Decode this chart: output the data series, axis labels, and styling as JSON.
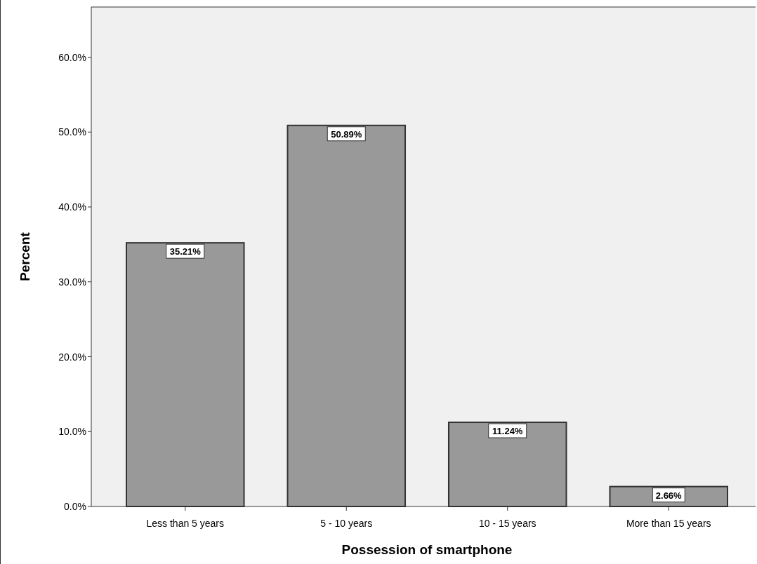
{
  "chart_data": {
    "type": "bar",
    "xlabel": "Possession of smartphone",
    "ylabel": "Percent",
    "categories": [
      "Less than 5 years",
      "5 - 10 years",
      "10 - 15 years",
      "More than 15 years"
    ],
    "values": [
      35.21,
      50.89,
      11.24,
      2.66
    ],
    "value_labels": [
      "35.21%",
      "50.89%",
      "11.24%",
      "2.66%"
    ],
    "color": "#999999",
    "ylim": [
      0,
      66.7
    ],
    "yticks": [
      {
        "value": 0,
        "label": "0.0%"
      },
      {
        "value": 10,
        "label": "10.0%"
      },
      {
        "value": 20,
        "label": "20.0%"
      },
      {
        "value": 30,
        "label": "30.0%"
      },
      {
        "value": 40,
        "label": "40.0%"
      },
      {
        "value": 50,
        "label": "50.0%"
      },
      {
        "value": 60,
        "label": "60.0%"
      }
    ],
    "grid": false
  }
}
